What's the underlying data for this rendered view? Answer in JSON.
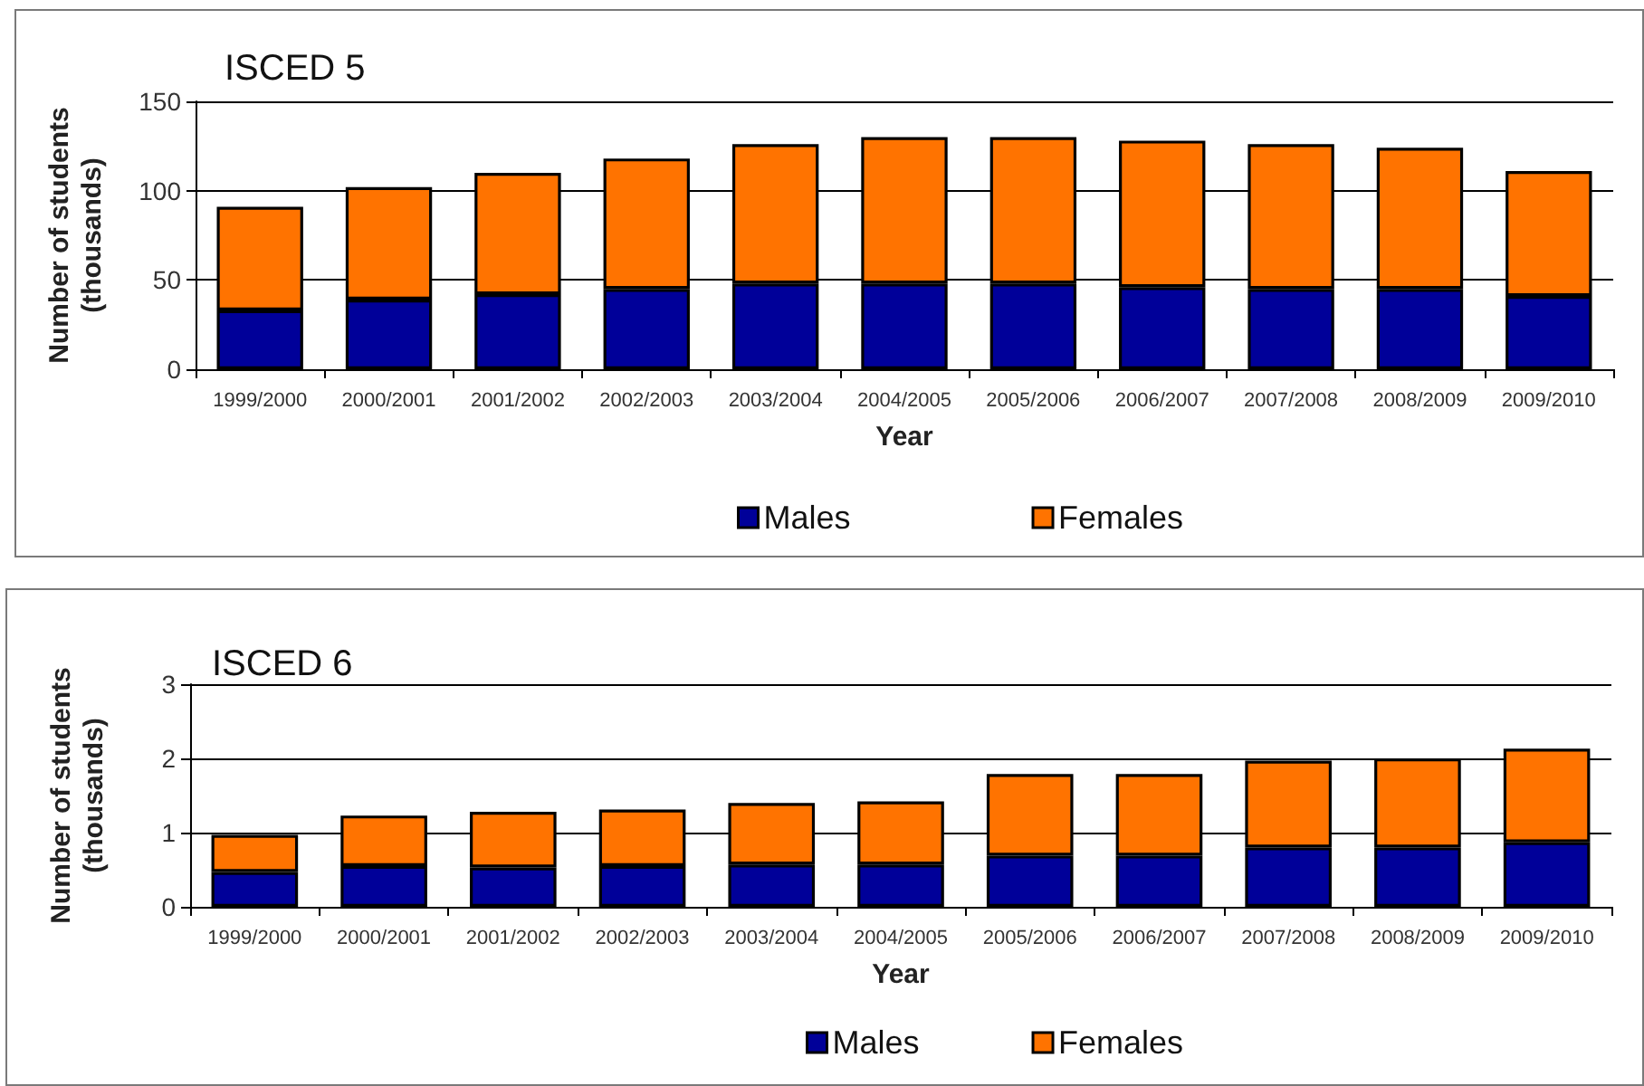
{
  "chart_data": [
    {
      "type": "bar",
      "title": "ISCED 5",
      "categories": [
        "1999/2000",
        "2000/2001",
        "2001/2002",
        "2002/2003",
        "2003/2004",
        "2004/2005",
        "2005/2006",
        "2006/2007",
        "2007/2008",
        "2008/2009",
        "2009/2010"
      ],
      "xlabel": "Year",
      "ylabel": "Number of students\n(thousands)",
      "stacked": true,
      "series": [
        {
          "name": "Males",
          "color": "#000099",
          "values": [
            33,
            39,
            42,
            45,
            48,
            48,
            48,
            46,
            45,
            45,
            41
          ]
        },
        {
          "name": "Females",
          "color": "#ff7300",
          "values": [
            58,
            63,
            68,
            73,
            78,
            82,
            82,
            82,
            81,
            79,
            70
          ]
        }
      ],
      "ylim": [
        0,
        150
      ],
      "yticks": [
        0,
        50,
        100,
        150
      ],
      "grid": "y",
      "legend": "bottom"
    },
    {
      "type": "bar",
      "title": "ISCED 6",
      "categories": [
        "1999/2000",
        "2000/2001",
        "2001/2002",
        "2002/2003",
        "2003/2004",
        "2004/2005",
        "2005/2006",
        "2006/2007",
        "2007/2008",
        "2008/2009",
        "2009/2010"
      ],
      "xlabel": "Year",
      "ylabel": "Number of students\n(thousands)",
      "stacked": true,
      "series": [
        {
          "name": "Males",
          "color": "#000099",
          "values": [
            0.47,
            0.55,
            0.53,
            0.55,
            0.57,
            0.57,
            0.69,
            0.69,
            0.8,
            0.8,
            0.87
          ]
        },
        {
          "name": "Females",
          "color": "#ff7300",
          "values": [
            0.5,
            0.68,
            0.75,
            0.76,
            0.83,
            0.85,
            1.1,
            1.1,
            1.17,
            1.2,
            1.26
          ]
        }
      ],
      "ylim": [
        0,
        3
      ],
      "yticks": [
        0,
        1,
        2,
        3
      ],
      "grid": "y",
      "legend": "bottom"
    }
  ]
}
